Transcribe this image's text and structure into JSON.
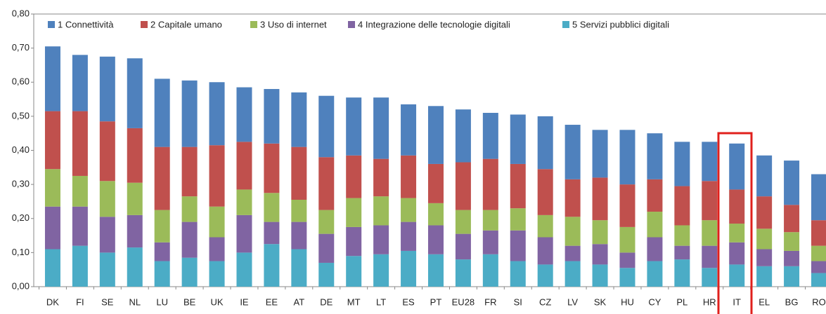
{
  "chart_data": {
    "type": "stacked_bar",
    "categories": [
      "DK",
      "FI",
      "SE",
      "NL",
      "LU",
      "BE",
      "UK",
      "IE",
      "EE",
      "AT",
      "DE",
      "MT",
      "LT",
      "ES",
      "PT",
      "EU28",
      "FR",
      "SI",
      "CZ",
      "LV",
      "SK",
      "HU",
      "CY",
      "PL",
      "HR",
      "IT",
      "EL",
      "BG",
      "RO"
    ],
    "series": [
      {
        "name": "5 Servizi pubblici digitali",
        "color": "#4bacc6",
        "values": [
          0.11,
          0.12,
          0.1,
          0.115,
          0.075,
          0.085,
          0.075,
          0.1,
          0.125,
          0.11,
          0.07,
          0.09,
          0.095,
          0.105,
          0.095,
          0.08,
          0.095,
          0.075,
          0.065,
          0.075,
          0.065,
          0.055,
          0.075,
          0.08,
          0.055,
          0.065,
          0.06,
          0.06,
          0.04
        ]
      },
      {
        "name": "4 Integrazione delle tecnologie digitali",
        "color": "#8064a2",
        "values": [
          0.125,
          0.115,
          0.105,
          0.095,
          0.055,
          0.105,
          0.07,
          0.11,
          0.065,
          0.08,
          0.085,
          0.085,
          0.085,
          0.085,
          0.085,
          0.075,
          0.07,
          0.09,
          0.08,
          0.045,
          0.06,
          0.045,
          0.07,
          0.04,
          0.065,
          0.065,
          0.05,
          0.045,
          0.035
        ]
      },
      {
        "name": "3 Uso di internet",
        "color": "#9bbb59",
        "values": [
          0.11,
          0.09,
          0.105,
          0.095,
          0.095,
          0.075,
          0.09,
          0.075,
          0.085,
          0.065,
          0.07,
          0.085,
          0.085,
          0.07,
          0.065,
          0.07,
          0.06,
          0.065,
          0.065,
          0.085,
          0.07,
          0.075,
          0.075,
          0.06,
          0.075,
          0.055,
          0.06,
          0.055,
          0.045
        ]
      },
      {
        "name": "2 Capitale umano",
        "color": "#c0504d",
        "values": [
          0.17,
          0.19,
          0.175,
          0.16,
          0.185,
          0.145,
          0.18,
          0.14,
          0.145,
          0.155,
          0.155,
          0.125,
          0.11,
          0.125,
          0.115,
          0.14,
          0.15,
          0.13,
          0.135,
          0.11,
          0.125,
          0.125,
          0.095,
          0.115,
          0.115,
          0.1,
          0.095,
          0.08,
          0.075
        ]
      },
      {
        "name": "1 Connettività",
        "color": "#4f81bd",
        "values": [
          0.19,
          0.165,
          0.19,
          0.205,
          0.2,
          0.195,
          0.185,
          0.16,
          0.16,
          0.16,
          0.18,
          0.17,
          0.18,
          0.15,
          0.17,
          0.155,
          0.135,
          0.145,
          0.155,
          0.16,
          0.14,
          0.16,
          0.135,
          0.13,
          0.115,
          0.135,
          0.12,
          0.13,
          0.135
        ]
      }
    ],
    "legend_order": [
      4,
      3,
      2,
      1,
      0
    ],
    "ylim": [
      0,
      0.8
    ],
    "yticks": [
      {
        "value": 0,
        "label": "0,00"
      },
      {
        "value": 0.1,
        "label": "0,10"
      },
      {
        "value": 0.2,
        "label": "0,20"
      },
      {
        "value": 0.3,
        "label": "0,30"
      },
      {
        "value": 0.4,
        "label": "0,40"
      },
      {
        "value": 0.5,
        "label": "0,50"
      },
      {
        "value": 0.6,
        "label": "0,60"
      },
      {
        "value": 0.7,
        "label": "0,70"
      },
      {
        "value": 0.8,
        "label": "0,80"
      }
    ]
  }
}
